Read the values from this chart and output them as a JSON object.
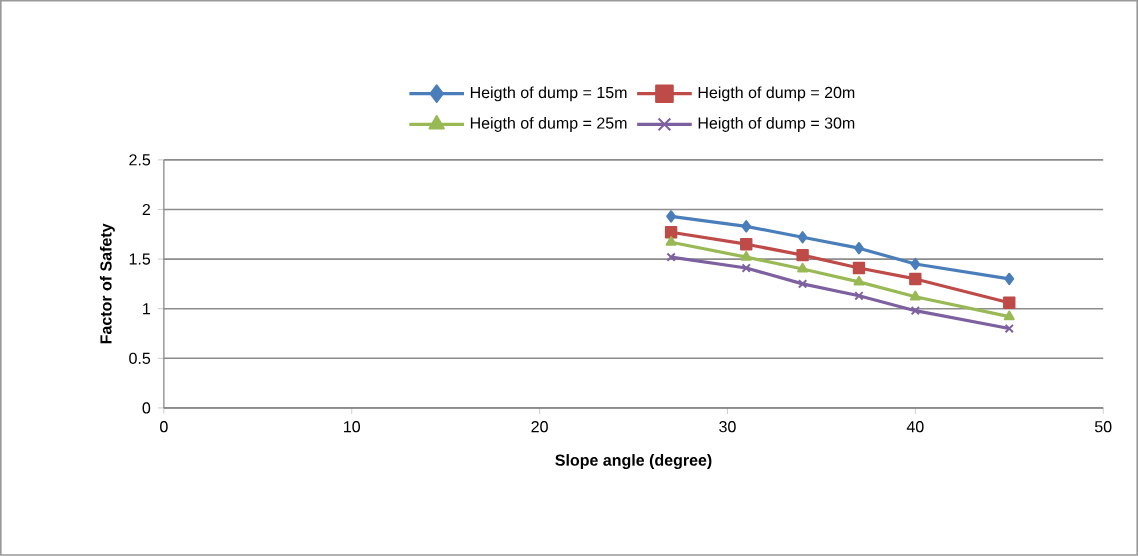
{
  "chart_data": {
    "type": "line",
    "xlabel": "Slope angle (degree)",
    "ylabel": "Factor of Safety",
    "x": [
      27,
      31,
      34,
      37,
      40,
      45
    ],
    "series": [
      {
        "name": "Heigth of dump = 15m",
        "color": "#4a7ebb",
        "marker": "diamond",
        "values": [
          1.93,
          1.83,
          1.72,
          1.61,
          1.45,
          1.3
        ]
      },
      {
        "name": "Heigth of dump = 20m",
        "color": "#be4b48",
        "marker": "square",
        "values": [
          1.77,
          1.65,
          1.54,
          1.41,
          1.3,
          1.06
        ]
      },
      {
        "name": "Heigth of dump = 25m",
        "color": "#98b954",
        "marker": "triangle",
        "values": [
          1.67,
          1.52,
          1.4,
          1.27,
          1.12,
          0.92
        ]
      },
      {
        "name": "Heigth of dump = 30m",
        "color": "#7d60a0",
        "marker": "cross",
        "values": [
          1.52,
          1.41,
          1.25,
          1.13,
          0.98,
          0.8
        ]
      }
    ],
    "xlim": [
      0,
      50
    ],
    "xticks": [
      0,
      10,
      20,
      30,
      40,
      50
    ],
    "ylim": [
      0,
      2.5
    ],
    "yticks": [
      0,
      0.5,
      1,
      1.5,
      2,
      2.5
    ],
    "grid": "y",
    "legend": "top",
    "line_style": "solid"
  }
}
